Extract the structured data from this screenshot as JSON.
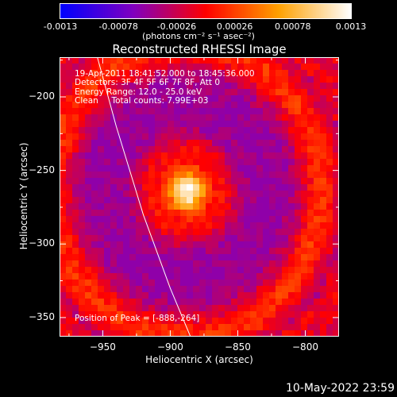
{
  "colorbar": {
    "tick_labels": [
      "-0.0013",
      "-0.00078",
      "-0.00026",
      "0.00026",
      "0.00078",
      "0.0013"
    ],
    "units": "(photons cm⁻² s⁻¹ asec⁻²)"
  },
  "chart_data": {
    "type": "heatmap",
    "title": "Reconstructed RHESSI Image",
    "xlabel": "Heliocentric X (arcsec)",
    "ylabel": "Heliocentric Y (arcsec)",
    "xlim": [
      -982,
      -775
    ],
    "ylim": [
      -363,
      -173
    ],
    "x_ticks": [
      -950,
      -900,
      -850,
      -800
    ],
    "y_ticks": [
      -200,
      -250,
      -300,
      -350
    ],
    "colorscale": {
      "min": -0.0013,
      "max": 0.0013,
      "colors": [
        "#0000ff",
        "#8000c0",
        "#ff0000",
        "#ffa000",
        "#ffffff"
      ]
    },
    "peak": {
      "x": -888,
      "y": -264,
      "value": 0.0013
    },
    "limb_curve": [
      [
        -954,
        -173
      ],
      [
        -940,
        -220
      ],
      [
        -920,
        -280
      ],
      [
        -900,
        -330
      ],
      [
        -885,
        -363
      ]
    ],
    "annotations": {
      "time_range": "19-Apr-2011 18:41:52.000 to 18:45:36.000",
      "detectors": "Detectors: 3F 4F 5F 6F 7F 8F, Att 0",
      "energy": "Energy Range: 12.0 - 25.0 keV",
      "algorithm": "Clean     Total counts: 7.99E+03",
      "peak_text": "Position of Peak = [-888,-264]"
    }
  },
  "footer": {
    "date": "10-May-2022 23:59"
  }
}
